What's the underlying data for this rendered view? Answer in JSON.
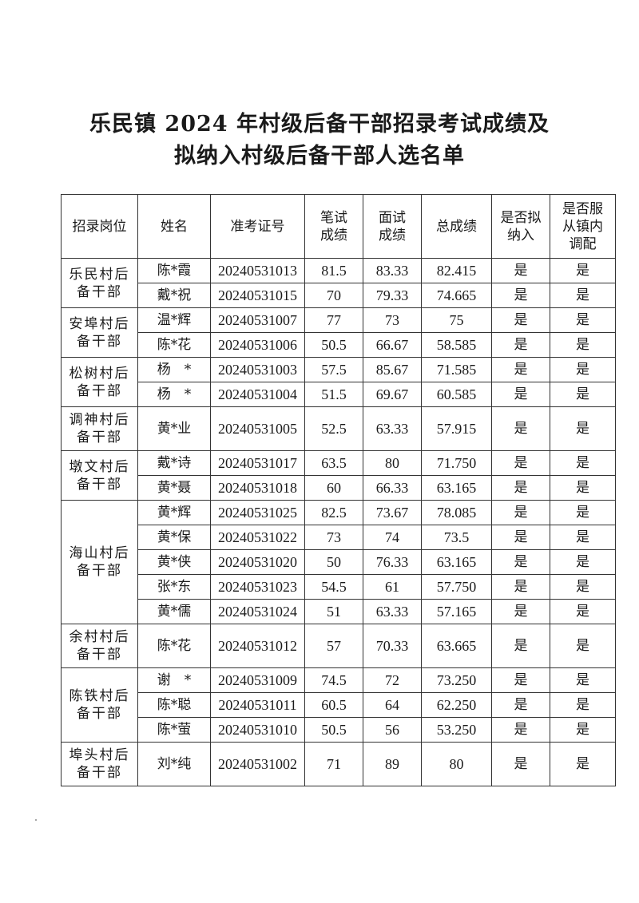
{
  "title_line1": "乐民镇 2024 年村级后备干部招录考试成绩及",
  "title_line2": "拟纳入村级后备干部人选名单",
  "headers": [
    "招录岗位",
    "姓名",
    "准考证号",
    "笔试\n成绩",
    "面试\n成绩",
    "总成绩",
    "是否拟\n纳入",
    "是否服\n从镇内\n调配"
  ],
  "groups": [
    {
      "position": "乐民村后备干部",
      "rows": [
        [
          "陈*霞",
          "20240531013",
          "81.5",
          "83.33",
          "82.415",
          "是",
          "是"
        ],
        [
          "戴*祝",
          "20240531015",
          "70",
          "79.33",
          "74.665",
          "是",
          "是"
        ]
      ]
    },
    {
      "position": "安埠村后备干部",
      "rows": [
        [
          "温*辉",
          "20240531007",
          "77",
          "73",
          "75",
          "是",
          "是"
        ],
        [
          "陈*花",
          "20240531006",
          "50.5",
          "66.67",
          "58.585",
          "是",
          "是"
        ]
      ]
    },
    {
      "position": "松树村后备干部",
      "rows": [
        [
          "杨　*",
          "20240531003",
          "57.5",
          "85.67",
          "71.585",
          "是",
          "是"
        ],
        [
          "杨　*",
          "20240531004",
          "51.5",
          "69.67",
          "60.585",
          "是",
          "是"
        ]
      ]
    },
    {
      "position": "调神村后备干部",
      "rows": [
        [
          "黄*业",
          "20240531005",
          "52.5",
          "63.33",
          "57.915",
          "是",
          "是"
        ]
      ]
    },
    {
      "position": "墩文村后备干部",
      "rows": [
        [
          "戴*诗",
          "20240531017",
          "63.5",
          "80",
          "71.750",
          "是",
          "是"
        ],
        [
          "黄*聂",
          "20240531018",
          "60",
          "66.33",
          "63.165",
          "是",
          "是"
        ]
      ]
    },
    {
      "position": "海山村后备干部",
      "rows": [
        [
          "黄*辉",
          "20240531025",
          "82.5",
          "73.67",
          "78.085",
          "是",
          "是"
        ],
        [
          "黄*保",
          "20240531022",
          "73",
          "74",
          "73.5",
          "是",
          "是"
        ],
        [
          "黄*侠",
          "20240531020",
          "50",
          "76.33",
          "63.165",
          "是",
          "是"
        ],
        [
          "张*东",
          "20240531023",
          "54.5",
          "61",
          "57.750",
          "是",
          "是"
        ],
        [
          "黄*儒",
          "20240531024",
          "51",
          "63.33",
          "57.165",
          "是",
          "是"
        ]
      ]
    },
    {
      "position": "余村村后备干部",
      "rows": [
        [
          "陈*花",
          "20240531012",
          "57",
          "70.33",
          "63.665",
          "是",
          "是"
        ]
      ]
    },
    {
      "position": "陈铁村后备干部",
      "rows": [
        [
          "谢　*",
          "20240531009",
          "74.5",
          "72",
          "73.250",
          "是",
          "是"
        ],
        [
          "陈*聪",
          "20240531011",
          "60.5",
          "64",
          "62.250",
          "是",
          "是"
        ],
        [
          "陈*萤",
          "20240531010",
          "50.5",
          "56",
          "53.250",
          "是",
          "是"
        ]
      ]
    },
    {
      "position": "埠头村后备干部",
      "rows": [
        [
          "刘*纯",
          "20240531002",
          "71",
          "89",
          "80",
          "是",
          "是"
        ]
      ]
    }
  ]
}
